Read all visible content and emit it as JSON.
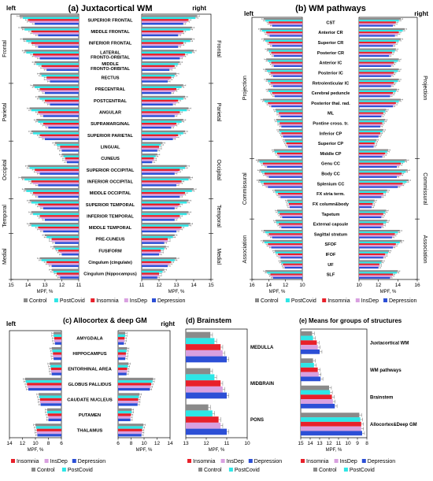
{
  "colors": {
    "Control": "#8a8a8a",
    "PostCovid": "#2ee6e6",
    "Insomnia": "#e8202a",
    "InsDep": "#d9a0e0",
    "Depression": "#2c4fd6"
  },
  "series_order": [
    "Control",
    "PostCovid",
    "Insomnia",
    "InsDep",
    "Depression"
  ],
  "legend": {
    "a": [
      "Control",
      "PostCovid",
      "Insomnia",
      "InsDep",
      "Depression"
    ],
    "b": [
      "Control",
      "PostCovid",
      "Insomnia",
      "InsDep",
      "Depression"
    ],
    "c_row1": [
      "Insomnia",
      "InsDep",
      "Depression"
    ],
    "c_row2": [
      "Control",
      "PostCovid"
    ],
    "d_row1": [
      "Insomnia",
      "InsDep",
      "Depression"
    ],
    "d_row2": [
      "Control",
      "PostCovid"
    ],
    "e_row1": [
      "Insomnia",
      "InsDep",
      "Depression"
    ],
    "e_row2": [
      "Control",
      "PostCovid"
    ]
  },
  "chart_data": [
    {
      "id": "a",
      "type": "bar",
      "title": "(a) Juxtacortical WM",
      "left_label": "left",
      "right_label": "right",
      "xlabel": "MPF, %",
      "left_xlim": [
        15,
        11
      ],
      "right_xlim": [
        11,
        15
      ],
      "left_ticks": [
        15,
        14,
        13,
        12,
        11
      ],
      "right_ticks": [
        11,
        12,
        13,
        14,
        15
      ],
      "categories": [
        "SUPERIOR FRONTAL",
        "MIDDLE FRONTAL",
        "INFERIOR FRONTAL",
        "LATERAL\nFRONTO-ORBITAL",
        "MIDDLE\nFRONTO-ORBITAL",
        "RECTUS",
        "PRECENTRAL",
        "POSTCENTRAL",
        "ANGULAR",
        "SUPRAMARGINAL",
        "SUPERIOR PARIETAL",
        "LINGUAL",
        "CUNEUS",
        "SUPERIOR OCCIPITAL",
        "INFERIOR OCCIPITAL",
        "MIDDLE OCCIPITAL",
        "SUPERIOR TEMPORAL",
        "INFERIOR TEMPORAL",
        "MIDDLE TEMPORAL",
        "PRE-CUNEUS",
        "FUSIFORM",
        "Cingulum (cingulate)",
        "Cingulum (hippocampus)"
      ],
      "groups": [
        {
          "label": "Frontal",
          "from": 0,
          "to": 5
        },
        {
          "label": "Parietal",
          "from": 6,
          "to": 10
        },
        {
          "label": "Occipital",
          "from": 11,
          "to": 15
        },
        {
          "label": "Temporal",
          "from": 16,
          "to": 18
        },
        {
          "label": "Medial",
          "from": 19,
          "to": 22
        }
      ],
      "left": [
        [
          14.5,
          14.3,
          14.0,
          13.9,
          13.6
        ],
        [
          14.4,
          14.2,
          13.8,
          13.7,
          13.4
        ],
        [
          14.3,
          14.1,
          13.8,
          13.6,
          13.4
        ],
        [
          14.2,
          14.1,
          13.7,
          13.6,
          13.3
        ],
        [
          13.6,
          13.5,
          13.2,
          13.1,
          12.9
        ],
        [
          13.3,
          13.2,
          12.9,
          12.9,
          12.7
        ],
        [
          13.7,
          13.6,
          13.3,
          13.2,
          13.0
        ],
        [
          13.4,
          13.3,
          13.0,
          12.9,
          12.7
        ],
        [
          13.9,
          13.8,
          13.4,
          13.3,
          13.1
        ],
        [
          13.5,
          13.4,
          13.1,
          13.0,
          12.8
        ],
        [
          13.8,
          13.7,
          13.3,
          13.2,
          13.0
        ],
        [
          12.4,
          12.3,
          12.1,
          12.1,
          12.0
        ],
        [
          12.0,
          11.9,
          11.8,
          11.8,
          11.7
        ],
        [
          14.0,
          13.9,
          13.6,
          13.5,
          13.3
        ],
        [
          14.4,
          14.2,
          13.8,
          13.7,
          13.4
        ],
        [
          14.2,
          14.1,
          13.7,
          13.6,
          13.4
        ],
        [
          13.9,
          13.8,
          13.4,
          13.3,
          13.1
        ],
        [
          13.8,
          13.7,
          13.3,
          13.2,
          13.0
        ],
        [
          13.9,
          13.8,
          13.4,
          13.3,
          13.1
        ],
        [
          13.0,
          12.9,
          12.6,
          12.6,
          12.4
        ],
        [
          12.5,
          12.4,
          12.2,
          12.1,
          12.0
        ],
        [
          13.3,
          13.2,
          12.9,
          12.8,
          12.6
        ],
        [
          12.6,
          12.5,
          12.3,
          12.2,
          12.1
        ]
      ],
      "right": [
        [
          14.2,
          14.1,
          13.7,
          13.6,
          13.4
        ],
        [
          13.9,
          13.8,
          13.4,
          13.3,
          13.1
        ],
        [
          13.9,
          13.8,
          13.4,
          13.3,
          13.1
        ],
        [
          14.0,
          13.9,
          13.5,
          13.4,
          13.2
        ],
        [
          13.2,
          13.1,
          12.9,
          12.8,
          12.6
        ],
        [
          13.0,
          12.9,
          12.7,
          12.6,
          12.5
        ],
        [
          13.4,
          13.3,
          13.0,
          12.9,
          12.7
        ],
        [
          13.5,
          13.4,
          13.1,
          13.0,
          12.8
        ],
        [
          13.7,
          13.6,
          13.2,
          13.1,
          12.9
        ],
        [
          13.4,
          13.3,
          13.0,
          12.9,
          12.7
        ],
        [
          13.5,
          13.4,
          13.1,
          13.0,
          12.8
        ],
        [
          12.2,
          12.1,
          12.0,
          12.0,
          11.9
        ],
        [
          11.9,
          11.8,
          11.7,
          11.7,
          11.6
        ],
        [
          13.6,
          13.5,
          13.2,
          13.1,
          12.9
        ],
        [
          13.8,
          13.7,
          13.3,
          13.2,
          13.0
        ],
        [
          14.0,
          13.9,
          13.5,
          13.4,
          13.2
        ],
        [
          13.7,
          13.6,
          13.2,
          13.1,
          12.9
        ],
        [
          13.7,
          13.6,
          13.2,
          13.1,
          12.9
        ],
        [
          13.8,
          13.7,
          13.3,
          13.2,
          13.0
        ],
        [
          12.9,
          12.8,
          12.5,
          12.5,
          12.3
        ],
        [
          12.4,
          12.3,
          12.1,
          12.1,
          12.0
        ],
        [
          13.0,
          12.9,
          12.7,
          12.6,
          12.5
        ],
        [
          12.3,
          12.2,
          12.0,
          12.0,
          11.9
        ]
      ]
    },
    {
      "id": "b",
      "type": "bar",
      "title": "(b) WM pathways",
      "left_label": "left",
      "right_label": "right",
      "xlabel": "MPF, %",
      "left_xlim": [
        16,
        10
      ],
      "right_xlim": [
        10,
        16
      ],
      "left_ticks": [
        16,
        14,
        12,
        10
      ],
      "right_ticks": [
        10,
        12,
        14,
        16
      ],
      "categories": [
        "CST",
        "Anterior CR",
        "Superior CR",
        "Posterior CR",
        "Anterior IC",
        "Posterior IC",
        "Retrolenticular IC",
        "Cerebral peduncle",
        "Posterior thal. rad.",
        "ML",
        "Pontine cross. tr.",
        "Inferior CP",
        "Superior CP",
        "Middle CP",
        "Genu CC",
        "Body CC",
        "Splenium CC",
        "FX stria term.",
        "FX column&body",
        "Tapetum",
        "External capsule",
        "Sagittal stratum",
        "SFOF",
        "IFOF",
        "UF",
        "SLF"
      ],
      "groups": [
        {
          "label": "Projection",
          "from": 0,
          "to": 13
        },
        {
          "label": "Commissural",
          "from": 14,
          "to": 19
        },
        {
          "label": "Association",
          "from": 20,
          "to": 25
        }
      ],
      "left": [
        [
          14.6,
          14.4,
          14.0,
          13.9,
          13.6
        ],
        [
          15.0,
          14.8,
          14.3,
          14.2,
          13.9
        ],
        [
          14.6,
          14.4,
          14.0,
          13.9,
          13.6
        ],
        [
          14.2,
          14.0,
          13.7,
          13.6,
          13.4
        ],
        [
          14.3,
          14.1,
          13.7,
          13.6,
          13.4
        ],
        [
          14.4,
          14.2,
          13.8,
          13.7,
          13.5
        ],
        [
          14.3,
          14.1,
          13.8,
          13.7,
          13.5
        ],
        [
          14.1,
          14.0,
          13.6,
          13.5,
          13.3
        ],
        [
          14.7,
          14.5,
          14.1,
          14.0,
          13.7
        ],
        [
          13.2,
          13.1,
          12.8,
          12.8,
          12.6
        ],
        [
          13.1,
          13.0,
          12.7,
          12.7,
          12.5
        ],
        [
          12.8,
          12.7,
          12.5,
          12.4,
          12.3
        ],
        [
          12.1,
          12.0,
          11.9,
          11.8,
          11.7
        ],
        [
          13.4,
          13.3,
          13.0,
          12.9,
          12.7
        ],
        [
          15.3,
          15.1,
          14.7,
          14.6,
          14.2
        ],
        [
          15.1,
          14.9,
          14.5,
          14.4,
          14.0
        ],
        [
          15.2,
          15.0,
          14.6,
          14.5,
          14.1
        ],
        [
          13.3,
          13.2,
          12.9,
          12.8,
          12.6
        ],
        [
          11.8,
          11.7,
          11.6,
          11.6,
          11.5
        ],
        [
          13.0,
          12.9,
          12.7,
          12.6,
          12.4
        ],
        [
          13.2,
          13.1,
          12.8,
          12.7,
          12.5
        ],
        [
          14.6,
          14.4,
          14.0,
          13.9,
          13.6
        ],
        [
          14.7,
          14.5,
          14.1,
          14.0,
          13.7
        ],
        [
          13.3,
          13.2,
          12.9,
          12.8,
          12.6
        ],
        [
          12.6,
          12.5,
          12.3,
          12.2,
          12.1
        ],
        [
          14.4,
          14.2,
          13.8,
          13.7,
          13.5
        ]
      ],
      "right": [
        [
          14.3,
          14.1,
          13.8,
          13.7,
          13.5
        ],
        [
          14.7,
          14.5,
          14.1,
          14.0,
          13.7
        ],
        [
          14.3,
          14.1,
          13.8,
          13.7,
          13.5
        ],
        [
          13.8,
          13.7,
          13.4,
          13.3,
          13.1
        ],
        [
          14.1,
          14.0,
          13.6,
          13.5,
          13.3
        ],
        [
          14.1,
          14.0,
          13.6,
          13.5,
          13.3
        ],
        [
          14.1,
          14.0,
          13.6,
          13.5,
          13.3
        ],
        [
          13.9,
          13.8,
          13.5,
          13.4,
          13.2
        ],
        [
          14.3,
          14.1,
          13.8,
          13.7,
          13.5
        ],
        [
          12.8,
          12.7,
          12.5,
          12.4,
          12.3
        ],
        [
          12.7,
          12.6,
          12.4,
          12.3,
          12.2
        ],
        [
          12.5,
          12.4,
          12.2,
          12.1,
          12.0
        ],
        [
          11.8,
          11.7,
          11.6,
          11.6,
          11.5
        ],
        [
          13.0,
          12.9,
          12.7,
          12.6,
          12.4
        ],
        [
          14.9,
          14.7,
          14.3,
          14.2,
          13.9
        ],
        [
          15.0,
          14.8,
          14.4,
          14.3,
          13.9
        ],
        [
          15.1,
          14.9,
          14.5,
          14.4,
          14.0
        ],
        [
          12.9,
          12.8,
          12.5,
          12.5,
          12.3
        ],
        [
          11.6,
          11.5,
          11.4,
          11.4,
          11.3
        ],
        [
          12.8,
          12.7,
          12.5,
          12.4,
          12.3
        ],
        [
          12.9,
          12.8,
          12.5,
          12.5,
          12.3
        ],
        [
          14.2,
          14.0,
          13.7,
          13.6,
          13.4
        ],
        [
          14.4,
          14.2,
          13.8,
          13.7,
          13.5
        ],
        [
          13.1,
          13.0,
          12.7,
          12.7,
          12.5
        ],
        [
          12.4,
          12.3,
          12.1,
          12.1,
          12.0
        ],
        [
          14.0,
          13.9,
          13.5,
          13.4,
          13.2
        ]
      ]
    },
    {
      "id": "c",
      "type": "bar",
      "title": "(c) Allocortex & deep GM",
      "left_label": "left",
      "right_label": "right",
      "xlabel": "MPF, %",
      "left_xlim": [
        14,
        6
      ],
      "right_xlim": [
        6,
        14
      ],
      "left_ticks": [
        14,
        12,
        10,
        8,
        6
      ],
      "right_ticks": [
        6,
        8,
        10,
        12,
        14
      ],
      "categories": [
        "AMYGDALA",
        "HIPPOCAMPUS",
        "ENTORHINAL AREA",
        "GLOBUS PALLIDUS",
        "CAUDATE NUCLEUS",
        "PUTAMEN",
        "THALAMUS"
      ],
      "left": [
        [
          7.2,
          7.2,
          7.1,
          7.1,
          7.0
        ],
        [
          7.5,
          7.4,
          7.3,
          7.3,
          7.2
        ],
        [
          7.8,
          7.7,
          7.6,
          7.6,
          7.5
        ],
        [
          11.6,
          11.5,
          11.3,
          11.2,
          11.1
        ],
        [
          9.5,
          9.4,
          9.3,
          9.3,
          9.2
        ],
        [
          8.2,
          8.2,
          8.1,
          8.0,
          8.0
        ],
        [
          10.0,
          9.9,
          9.8,
          9.8,
          9.7
        ]
      ],
      "right": [
        [
          7.1,
          7.1,
          7.0,
          7.0,
          6.9
        ],
        [
          7.4,
          7.3,
          7.2,
          7.2,
          7.1
        ],
        [
          7.6,
          7.5,
          7.4,
          7.4,
          7.3
        ],
        [
          11.4,
          11.3,
          11.1,
          11.0,
          10.9
        ],
        [
          9.3,
          9.2,
          9.1,
          9.1,
          9.0
        ],
        [
          8.1,
          8.1,
          8.0,
          7.9,
          7.9
        ],
        [
          9.9,
          9.8,
          9.7,
          9.7,
          9.6
        ]
      ]
    },
    {
      "id": "d",
      "type": "bar",
      "title": "(d) Brainstem",
      "xlabel": "MPF, %",
      "xlim": [
        13,
        10
      ],
      "ticks": [
        13,
        12,
        11,
        10
      ],
      "categories": [
        "MEDULLA",
        "MIDBRAIN",
        "PONS"
      ],
      "values": [
        [
          11.8,
          11.6,
          11.3,
          11.2,
          11.0
        ],
        [
          11.8,
          11.6,
          11.3,
          11.2,
          11.0
        ],
        [
          11.9,
          11.7,
          11.4,
          11.3,
          11.0
        ]
      ]
    },
    {
      "id": "e",
      "type": "bar",
      "title": "(e) Means for groups of structures",
      "xlabel": "MPF, %",
      "xlim": [
        15,
        8
      ],
      "ticks": [
        15,
        14,
        13,
        12,
        11,
        10,
        9,
        8
      ],
      "categories": [
        "Juxtacortical WM",
        "WM pathways",
        "Brainstem",
        "Allocortex&Deep GM"
      ],
      "values": [
        [
          13.8,
          13.7,
          13.3,
          13.2,
          13.0
        ],
        [
          13.7,
          13.6,
          13.2,
          13.1,
          12.9
        ],
        [
          12.0,
          11.9,
          11.7,
          11.6,
          11.4
        ],
        [
          8.8,
          8.7,
          8.6,
          8.6,
          8.5
        ]
      ]
    }
  ]
}
